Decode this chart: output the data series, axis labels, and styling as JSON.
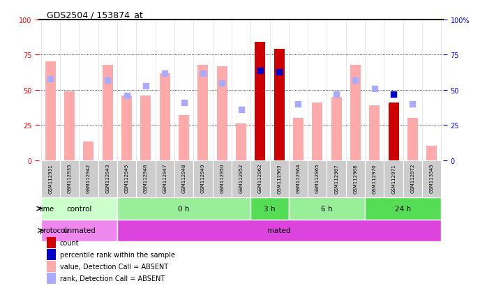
{
  "title": "GDS2504 / 153874_at",
  "samples": [
    "GSM112931",
    "GSM112935",
    "GSM112942",
    "GSM112943",
    "GSM112945",
    "GSM112946",
    "GSM112947",
    "GSM112948",
    "GSM112949",
    "GSM112950",
    "GSM112952",
    "GSM112962",
    "GSM112963",
    "GSM112964",
    "GSM112965",
    "GSM112967",
    "GSM112968",
    "GSM112970",
    "GSM112971",
    "GSM112972",
    "GSM113345"
  ],
  "bar_values": [
    70,
    49,
    13,
    68,
    46,
    46,
    62,
    32,
    68,
    67,
    26,
    84,
    79,
    30,
    41,
    45,
    68,
    39,
    41,
    30,
    10
  ],
  "bar_colors": [
    "#ffaaaa",
    "#ffaaaa",
    "#ffaaaa",
    "#ffaaaa",
    "#ffaaaa",
    "#ffaaaa",
    "#ffaaaa",
    "#ffaaaa",
    "#ffaaaa",
    "#ffaaaa",
    "#ffaaaa",
    "#cc0000",
    "#cc0000",
    "#ffaaaa",
    "#ffaaaa",
    "#ffaaaa",
    "#ffaaaa",
    "#ffaaaa",
    "#cc0000",
    "#ffaaaa",
    "#ffaaaa"
  ],
  "rank_values": [
    58,
    null,
    null,
    57,
    46,
    53,
    62,
    41,
    62,
    55,
    36,
    64,
    63,
    40,
    null,
    47,
    57,
    51,
    47,
    40,
    null
  ],
  "rank_colors": [
    "#aaaaff",
    "#aaaaff",
    "#aaaaff",
    "#aaaaff",
    "#aaaaff",
    "#aaaaff",
    "#aaaaff",
    "#aaaaff",
    "#aaaaff",
    "#aaaaff",
    "#aaaaff",
    "#0000cc",
    "#0000cc",
    "#aaaaff",
    "#aaaaff",
    "#aaaaff",
    "#aaaaff",
    "#aaaaff",
    "#0000cc",
    "#aaaaff",
    "#aaaaff"
  ],
  "time_groups": [
    {
      "label": "control",
      "start": 0,
      "end": 4,
      "color": "#ccffcc"
    },
    {
      "label": "0 h",
      "start": 4,
      "end": 11,
      "color": "#99ee99"
    },
    {
      "label": "3 h",
      "start": 11,
      "end": 13,
      "color": "#55dd55"
    },
    {
      "label": "6 h",
      "start": 13,
      "end": 17,
      "color": "#99ee99"
    },
    {
      "label": "24 h",
      "start": 17,
      "end": 21,
      "color": "#55dd55"
    }
  ],
  "protocol_groups": [
    {
      "label": "unmated",
      "start": 0,
      "end": 4,
      "color": "#ee88ee"
    },
    {
      "label": "mated",
      "start": 4,
      "end": 21,
      "color": "#dd44dd"
    }
  ],
  "ylim": [
    0,
    100
  ],
  "left_ticks": [
    0,
    25,
    50,
    75,
    100
  ],
  "right_tick_labels": [
    "0",
    "25",
    "50",
    "75",
    "100%"
  ],
  "legend_items": [
    {
      "color": "#cc0000",
      "label": "count"
    },
    {
      "color": "#0000cc",
      "label": "percentile rank within the sample"
    },
    {
      "color": "#ffaaaa",
      "label": "value, Detection Call = ABSENT"
    },
    {
      "color": "#aaaaff",
      "label": "rank, Detection Call = ABSENT"
    }
  ],
  "bar_width": 0.55,
  "rank_marker_size": 28,
  "bg_color": "#ffffff",
  "grid_color": "#000000",
  "xlabel_gray": "#cccccc",
  "col_sep_color": "#aaaaaa"
}
